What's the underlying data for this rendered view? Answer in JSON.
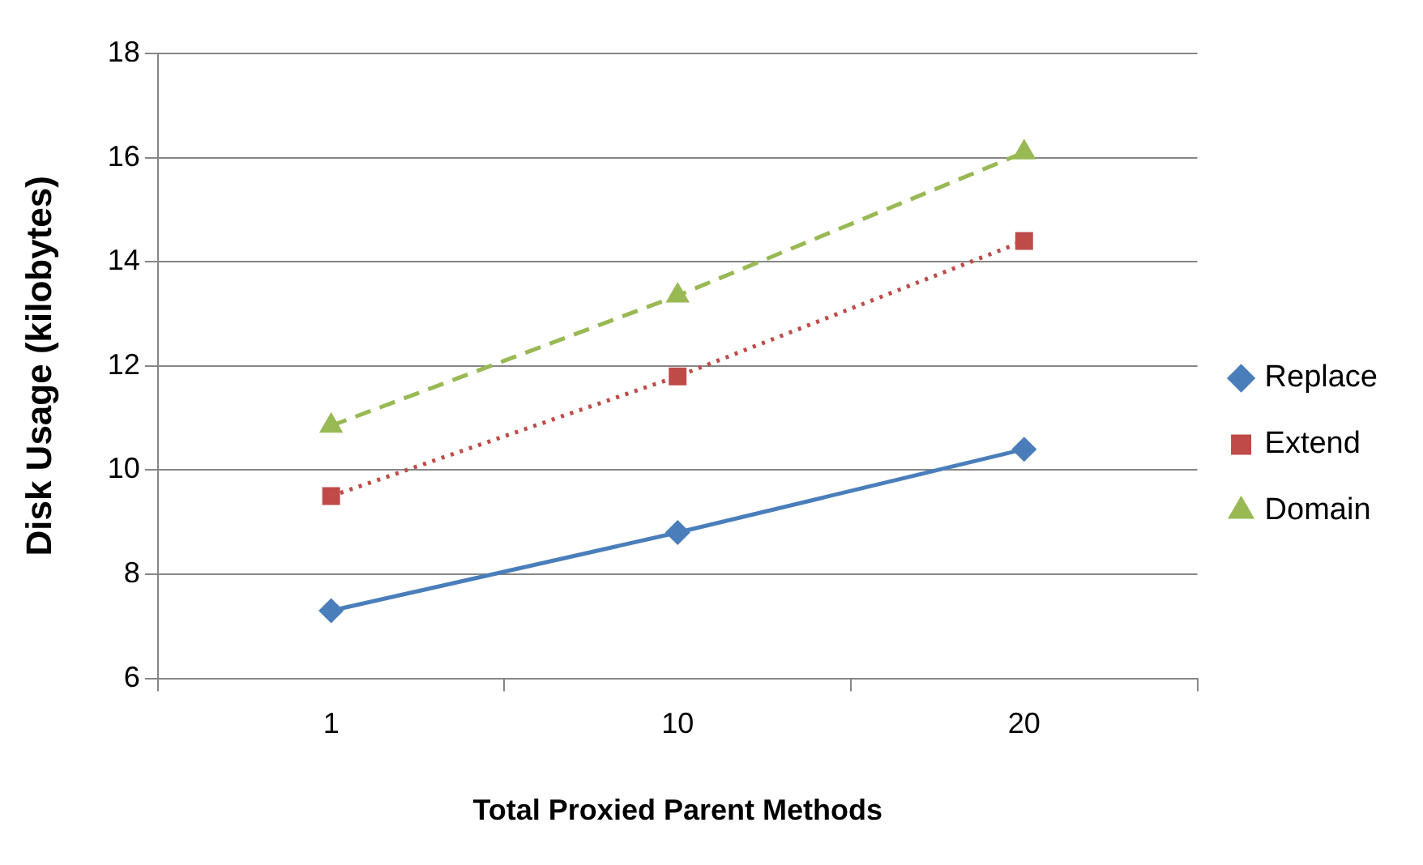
{
  "chart_data": {
    "type": "line",
    "xlabel": "Total Proxied Parent Methods",
    "ylabel": "Disk Usage (kilobytes)",
    "categories": [
      "1",
      "10",
      "20"
    ],
    "series": [
      {
        "name": "Replace",
        "color": "#4a7ebb",
        "values": [
          7.3,
          8.8,
          10.4
        ],
        "marker": "diamond",
        "line_style": "solid"
      },
      {
        "name": "Extend",
        "color": "#be4b48",
        "values": [
          9.5,
          11.8,
          14.4
        ],
        "marker": "square",
        "line_style": "dotted"
      },
      {
        "name": "Domain",
        "color": "#98b954",
        "values": [
          10.85,
          13.35,
          16.1
        ],
        "marker": "triangle",
        "line_style": "dashed"
      }
    ],
    "ylim": [
      6,
      18
    ],
    "yticks": [
      6,
      8,
      10,
      12,
      14,
      16,
      18
    ],
    "grid": "y",
    "legend": "right"
  }
}
